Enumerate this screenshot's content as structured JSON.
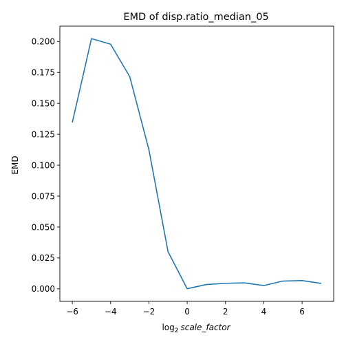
{
  "chart_data": {
    "type": "line",
    "title": "EMD of disp.ratio_median_05",
    "xlabel_prefix": "log",
    "xlabel_sub": "2",
    "xlabel_var": "scale_factor",
    "ylabel": "EMD",
    "xlim": [
      -6.65,
      7.65
    ],
    "ylim": [
      -0.0101,
      0.2124
    ],
    "x_ticks": [
      -6,
      -4,
      -2,
      0,
      2,
      4,
      6
    ],
    "x_tick_labels": [
      "−6",
      "−4",
      "−2",
      "0",
      "2",
      "4",
      "6"
    ],
    "y_ticks": [
      0.0,
      0.025,
      0.05,
      0.075,
      0.1,
      0.125,
      0.15,
      0.175,
      0.2
    ],
    "y_tick_labels": [
      "0.000",
      "0.025",
      "0.050",
      "0.075",
      "0.100",
      "0.125",
      "0.150",
      "0.175",
      "0.200"
    ],
    "grid": false,
    "series": [
      {
        "color": "#1f77b4",
        "x": [
          -6,
          -5,
          -4,
          -3,
          -2,
          -1,
          0,
          1,
          2,
          3,
          4,
          5,
          6,
          7
        ],
        "y": [
          0.1345,
          0.2023,
          0.1978,
          0.1715,
          0.1125,
          0.03,
          0.0001,
          0.0035,
          0.0045,
          0.0048,
          0.0027,
          0.0063,
          0.0067,
          0.0044
        ]
      }
    ]
  }
}
